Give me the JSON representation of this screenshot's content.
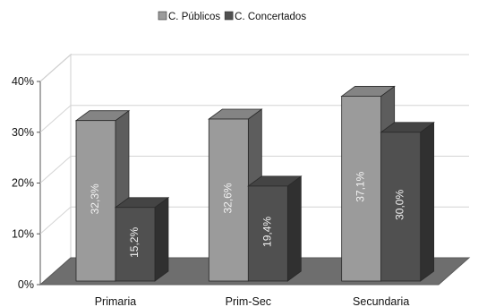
{
  "chart_data": {
    "type": "bar",
    "categories": [
      "Primaria",
      "Prim-Sec",
      "Secundaria"
    ],
    "series": [
      {
        "name": "C. Públicos",
        "values": [
          32.3,
          32.6,
          37.1
        ],
        "labels": [
          "32,3%",
          "32,6%",
          "37,1%"
        ],
        "color": "#9b9b9b"
      },
      {
        "name": "C. Concertados",
        "values": [
          15.2,
          19.4,
          30.0
        ],
        "labels": [
          "15,2%",
          "19,4%",
          "30,0%"
        ],
        "color": "#505050"
      }
    ],
    "ylim": [
      0,
      40
    ],
    "yticks": [
      0,
      10,
      20,
      30,
      40
    ],
    "ytick_labels": [
      "0%",
      "10%",
      "20%",
      "30%",
      "40%"
    ],
    "grid": true,
    "legend_position": "top",
    "style": "3d"
  }
}
